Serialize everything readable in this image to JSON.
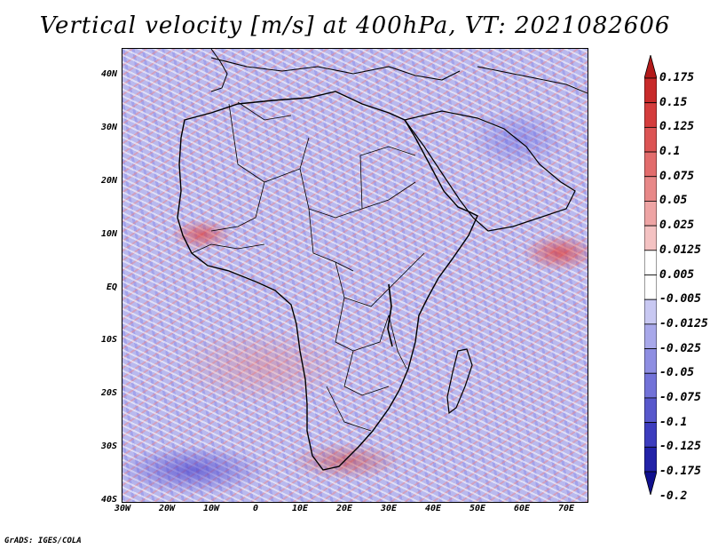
{
  "title": "Vertical velocity [m/s] at 400hPa, VT: 2021082606",
  "y_axis_labels": [
    "40N",
    "30N",
    "20N",
    "10N",
    "EQ",
    "10S",
    "20S",
    "30S",
    "40S"
  ],
  "x_axis_labels": [
    "30W",
    "20W",
    "10W",
    "0",
    "10E",
    "20E",
    "30E",
    "40E",
    "50E",
    "60E",
    "70E"
  ],
  "colorbar": {
    "labels": [
      "0.175",
      "0.15",
      "0.125",
      "0.1",
      "0.075",
      "0.05",
      "0.025",
      "0.0125",
      "0.005",
      "-0.005",
      "-0.0125",
      "-0.025",
      "-0.05",
      "-0.075",
      "-0.1",
      "-0.125",
      "-0.175",
      "-0.2"
    ],
    "colors": [
      "#b21a1a",
      "#c82a2a",
      "#d43c3c",
      "#dc5454",
      "#e26c6c",
      "#e88888",
      "#eea4a4",
      "#f4c2c2",
      "#ffffff",
      "#ffffff",
      "#c8c8f2",
      "#a8a8ea",
      "#8e8ee2",
      "#7272d8",
      "#5858cc",
      "#3c3cbe",
      "#2222a8",
      "#10108e"
    ]
  },
  "footer": "GrADS: IGES/COLA"
}
